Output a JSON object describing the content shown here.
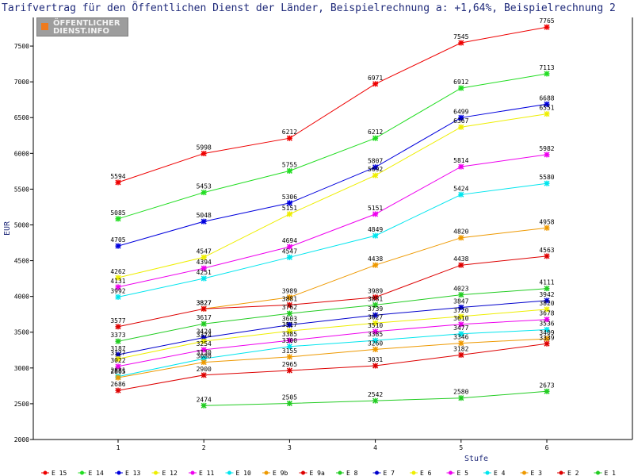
{
  "logo": {
    "line1": "ÖFFENTLICHER",
    "line2": "DIENST.INFO"
  },
  "chart_data": {
    "type": "line",
    "title": "Tarifvertrag für den Öffentlichen Dienst der Länder, Beispielrechnung a: +1,64%, Beispielrechnung 2",
    "xlabel": "Stufe",
    "ylabel": "EUR",
    "ylim": [
      2000,
      7900
    ],
    "yticks": [
      2000,
      2500,
      3000,
      3500,
      4000,
      4500,
      5000,
      5500,
      6000,
      6500,
      7000,
      7500
    ],
    "x": [
      1,
      2,
      3,
      4,
      5,
      6
    ],
    "grid": false,
    "legend": "bottom",
    "series": [
      {
        "name": "E_15",
        "color": "#ee0000",
        "values": [
          5594,
          5998,
          6212,
          6971,
          7545,
          7765
        ]
      },
      {
        "name": "E_14",
        "color": "#22dd22",
        "values": [
          5085,
          5453,
          5755,
          6212,
          6912,
          7113
        ]
      },
      {
        "name": "E_13",
        "color": "#0000dd",
        "values": [
          4705,
          5048,
          5306,
          5807,
          6499,
          6688
        ]
      },
      {
        "name": "E_12",
        "color": "#eeee00",
        "values": [
          4262,
          4547,
          5151,
          5692,
          6367,
          6551
        ]
      },
      {
        "name": "E_11",
        "color": "#ee00ee",
        "values": [
          4131,
          4394,
          4694,
          5151,
          5814,
          5982
        ]
      },
      {
        "name": "E_10",
        "color": "#00e5ee",
        "values": [
          3992,
          4251,
          4547,
          4849,
          5424,
          5580
        ]
      },
      {
        "name": "E_9b",
        "color": "#ee9900",
        "values": [
          null,
          3827,
          3989,
          4438,
          4820,
          4958
        ]
      },
      {
        "name": "E_9a",
        "color": "#dd0000",
        "values": [
          3577,
          3827,
          3881,
          3989,
          4438,
          4563
        ]
      },
      {
        "name": "E_8",
        "color": "#22cc22",
        "values": [
          3373,
          3617,
          3762,
          3881,
          4023,
          4111
        ]
      },
      {
        "name": "E_7",
        "color": "#0000cc",
        "values": [
          3187,
          3424,
          3603,
          3739,
          3847,
          3942
        ]
      },
      {
        "name": "E_6",
        "color": "#eeee00",
        "values": [
          3127,
          3374,
          3517,
          3627,
          3720,
          3820
        ]
      },
      {
        "name": "E_5",
        "color": "#ee00ee",
        "values": [
          3022,
          3254,
          3385,
          3510,
          3610,
          3678
        ]
      },
      {
        "name": "E_4",
        "color": "#00e5ee",
        "values": [
          2881,
          3130,
          3300,
          3385,
          3477,
          3536
        ]
      },
      {
        "name": "E_3",
        "color": "#ee9900",
        "values": [
          2865,
          3080,
          3155,
          3260,
          3346,
          3409
        ]
      },
      {
        "name": "E_2",
        "color": "#dd0000",
        "values": [
          2686,
          2900,
          2965,
          3031,
          3182,
          3339
        ]
      },
      {
        "name": "E_1",
        "color": "#22cc22",
        "values": [
          null,
          2474,
          2505,
          2542,
          2580,
          2673
        ]
      }
    ]
  }
}
